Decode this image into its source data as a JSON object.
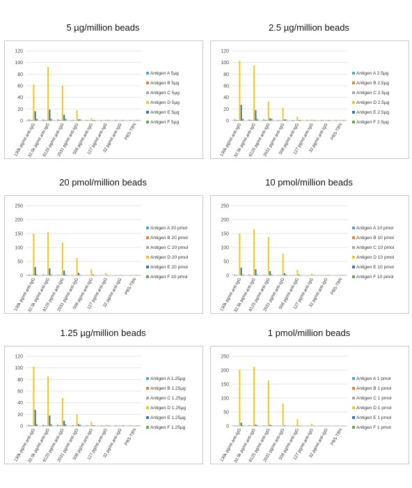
{
  "series_colors": [
    "#4aa3d8",
    "#ed7d31",
    "#a5a5a5",
    "#f5c518",
    "#2e75b6",
    "#5aaa46"
  ],
  "chart_data": [
    {
      "type": "bar",
      "title": "5 µg/million beads",
      "categories": [
        "130k pg/ml anti-IgG",
        "32.5k pg/ml anti-IgG",
        "8125 pg/ml anti-IgG",
        "2031 pg/ml anti-IgG",
        "508 pg/ml anti-IgG",
        "127 pg/ml anti-IgG",
        "32 pg/ml anti-IgG",
        "PBS-TBN"
      ],
      "ylim": [
        0,
        120
      ],
      "yticks": [
        0,
        20,
        40,
        60,
        80,
        100,
        120
      ],
      "series": [
        {
          "name": "Antigen A 5µg",
          "values": [
            2,
            2,
            2,
            1,
            1,
            1,
            1,
            1
          ]
        },
        {
          "name": "Antigen B 5µg",
          "values": [
            1,
            1,
            1,
            0.5,
            0.5,
            0.5,
            0.5,
            0.5
          ]
        },
        {
          "name": "Antigen C 5µg",
          "values": [
            1,
            1,
            1,
            0.5,
            0.5,
            0.5,
            0.5,
            0.5
          ]
        },
        {
          "name": "Antigen D 5µg",
          "values": [
            62,
            92,
            60,
            18,
            4,
            1.5,
            1,
            1
          ]
        },
        {
          "name": "Antigen E 5µg",
          "values": [
            16,
            19,
            10,
            2,
            1,
            0.5,
            0.5,
            0.5
          ]
        },
        {
          "name": "Antigen F 5µg",
          "values": [
            3,
            3,
            3,
            2,
            1,
            1,
            1,
            1
          ]
        }
      ]
    },
    {
      "type": "bar",
      "title": "2.5 µg/million beads",
      "categories": [
        "130k pg/ml anti-IgG",
        "32.5k pg/ml anti-IgG",
        "8125 pg/ml anti-IgG",
        "2031 pg/ml anti-IgG",
        "508 pg/ml anti-IgG",
        "127 pg/ml anti-IgG",
        "32 pg/ml anti-IgG",
        "PBS-TBN"
      ],
      "ylim": [
        0,
        120
      ],
      "yticks": [
        0,
        20,
        40,
        60,
        80,
        100,
        120
      ],
      "series": [
        {
          "name": "Antigen A 2.5µg",
          "values": [
            2,
            2,
            2,
            1,
            1,
            1,
            1,
            1
          ]
        },
        {
          "name": "Antigen B 2.5µg",
          "values": [
            1,
            1,
            1,
            0.5,
            0.5,
            0.5,
            0.5,
            0.5
          ]
        },
        {
          "name": "Antigen C 2.5µg",
          "values": [
            1,
            1,
            1,
            0.5,
            0.5,
            0.5,
            0.5,
            0.5
          ]
        },
        {
          "name": "Antigen D 2.5µg",
          "values": [
            103,
            95,
            33,
            22,
            7,
            2,
            1,
            1
          ]
        },
        {
          "name": "Antigen E 2.5µg",
          "values": [
            27,
            18,
            4,
            2,
            1,
            0.5,
            0.5,
            0.5
          ]
        },
        {
          "name": "Antigen F 2.5µg",
          "values": [
            3,
            3,
            3,
            2,
            1,
            1,
            1,
            1
          ]
        }
      ]
    },
    {
      "type": "bar",
      "title": "20 pmol/million beads",
      "categories": [
        "130k pg/ml anti-IgG",
        "32.5k pg/ml anti-IgG",
        "8125 pg/ml anti-IgG",
        "2031 pg/ml anti-IgG",
        "508 pg/ml anti-IgG",
        "127 pg/ml anti-IgG",
        "32 pg/ml anti-IgG",
        "PBS-TBN"
      ],
      "ylim": [
        0,
        250
      ],
      "yticks": [
        0,
        50,
        100,
        150,
        200,
        250
      ],
      "series": [
        {
          "name": "Antigen A 20 pmol",
          "values": [
            3,
            3,
            2,
            1,
            1,
            1,
            1,
            1
          ]
        },
        {
          "name": "Antigen B 20 pmol",
          "values": [
            1,
            1,
            1,
            0.5,
            0.5,
            0.5,
            0.5,
            0.5
          ]
        },
        {
          "name": "Antigen C 20 pmol",
          "values": [
            1,
            1,
            1,
            0.5,
            0.5,
            0.5,
            0.5,
            0.5
          ]
        },
        {
          "name": "Antigen D 20 pmol",
          "values": [
            150,
            155,
            118,
            62,
            22,
            8,
            2,
            2
          ]
        },
        {
          "name": "Antigen E 20 pmol",
          "values": [
            30,
            25,
            17,
            9,
            3,
            1,
            1,
            1
          ]
        },
        {
          "name": "Antigen F 20 pmol",
          "values": [
            3,
            3,
            3,
            2,
            1,
            1,
            1,
            1
          ]
        }
      ]
    },
    {
      "type": "bar",
      "title": "10 pmol/million beads",
      "categories": [
        "130k pg/ml anti-IgG",
        "32.5k pg/ml anti-IgG",
        "8125 pg/ml anti-IgG",
        "2031 pg/ml anti-IgG",
        "508 pg/ml anti-IgG",
        "127 pg/ml anti-IgG",
        "32 pg/ml anti-IgG",
        "PBS-TBN"
      ],
      "ylim": [
        0,
        250
      ],
      "yticks": [
        0,
        50,
        100,
        150,
        200,
        250
      ],
      "series": [
        {
          "name": "Antigen A 10 pmol",
          "values": [
            3,
            3,
            2,
            1,
            1,
            1,
            1,
            1
          ]
        },
        {
          "name": "Antigen B 10 pmol",
          "values": [
            1,
            1,
            1,
            0.5,
            0.5,
            0.5,
            0.5,
            0.5
          ]
        },
        {
          "name": "Antigen C 10 pmol",
          "values": [
            1,
            1,
            1,
            0.5,
            0.5,
            0.5,
            0.5,
            0.5
          ]
        },
        {
          "name": "Antigen D 10 pmol",
          "values": [
            150,
            165,
            138,
            78,
            20,
            6,
            2,
            2
          ]
        },
        {
          "name": "Antigen E 10 pmol",
          "values": [
            28,
            22,
            15,
            8,
            3,
            1,
            1,
            1
          ]
        },
        {
          "name": "Antigen F 10 pmol",
          "values": [
            3,
            3,
            3,
            2,
            1,
            1,
            1,
            1
          ]
        }
      ]
    },
    {
      "type": "bar",
      "title": "1.25 µg/million beads",
      "categories": [
        "130k pg/ml anti-IgG",
        "32.5k pg/ml anti-IgG",
        "8125 pg/ml anti-IgG",
        "2031 pg/ml anti-IgG",
        "508 pg/ml anti-IgG",
        "127 pg/ml anti-IgG",
        "32 pg/ml anti-IgG",
        "PBS-TBN"
      ],
      "ylim": [
        0,
        120
      ],
      "yticks": [
        0,
        20,
        40,
        60,
        80,
        100,
        120
      ],
      "series": [
        {
          "name": "Antigen A 1.25µg",
          "values": [
            2,
            2,
            2,
            1,
            1,
            1,
            1,
            1
          ]
        },
        {
          "name": "Antigen B 1.25µg",
          "values": [
            1,
            1,
            1,
            0.5,
            0.5,
            0.5,
            0.5,
            0.5
          ]
        },
        {
          "name": "Antigen C 1.25µg",
          "values": [
            1,
            1,
            1,
            0.5,
            0.5,
            0.5,
            0.5,
            0.5
          ]
        },
        {
          "name": "Antigen D 1.25µg",
          "values": [
            102,
            85,
            48,
            20,
            7,
            2,
            1,
            1
          ]
        },
        {
          "name": "Antigen E 1.25µg",
          "values": [
            28,
            18,
            9,
            3,
            1,
            0.5,
            0.5,
            0.5
          ]
        },
        {
          "name": "Antigen F 1.25µg",
          "values": [
            3,
            3,
            3,
            2,
            1,
            1,
            1,
            1
          ]
        }
      ]
    },
    {
      "type": "bar",
      "title": "1 pmol/million beads",
      "categories": [
        "130k pg/ml anti-IgG",
        "32.5k pg/ml anti-IgG",
        "8125 pg/ml anti-IgG",
        "2031 pg/ml anti-IgG",
        "508 pg/ml anti-IgG",
        "127 pg/ml anti-IgG",
        "32 pg/ml anti-IgG",
        "PBS-TBN"
      ],
      "ylim": [
        0,
        250
      ],
      "yticks": [
        0,
        50,
        100,
        150,
        200,
        250
      ],
      "series": [
        {
          "name": "Antigen A 1 pmol",
          "values": [
            2,
            2,
            2,
            1,
            1,
            1,
            1,
            1
          ]
        },
        {
          "name": "Antigen B 1 pmol",
          "values": [
            1,
            1,
            1,
            0.5,
            0.5,
            0.5,
            0.5,
            0.5
          ]
        },
        {
          "name": "Antigen C 1 pmol",
          "values": [
            1,
            1,
            1,
            0.5,
            0.5,
            0.5,
            0.5,
            0.5
          ]
        },
        {
          "name": "Antigen D 1 pmol",
          "values": [
            202,
            212,
            163,
            80,
            25,
            8,
            2,
            1
          ]
        },
        {
          "name": "Antigen E 1 pmol",
          "values": [
            12,
            5,
            4,
            2,
            1,
            0.5,
            0.5,
            0.5
          ]
        },
        {
          "name": "Antigen F 1 pmol",
          "values": [
            2,
            2,
            2,
            1,
            1,
            1,
            1,
            1
          ]
        }
      ]
    }
  ]
}
